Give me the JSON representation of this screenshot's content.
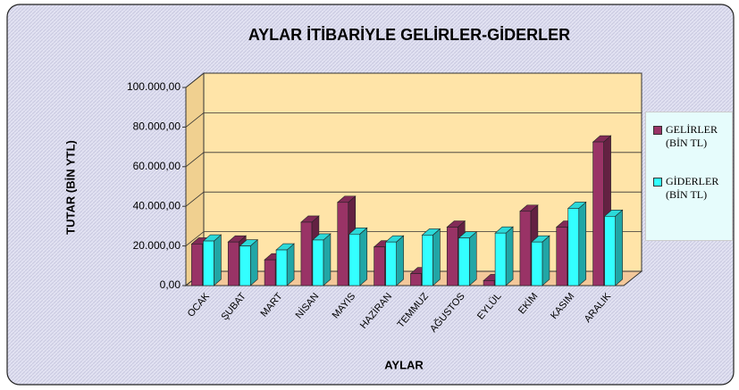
{
  "chart_data": {
    "type": "bar3d",
    "title": "AYLAR İTİBARİYLE GELİRLER-GİDERLER",
    "x_label": "AYLAR",
    "y_label": "TUTAR (BİN YTL)",
    "categories": [
      "OCAK",
      "ŞUBAT",
      "MART",
      "NİSAN",
      "MAYIS",
      "HAZİRAN",
      "TEMMUZ",
      "AĞUSTOS",
      "EYLÜL",
      "EKİM",
      "KASIM",
      "ARALIK"
    ],
    "series": [
      {
        "name": "GELİRLER (BİN TL)",
        "color": "#993366",
        "values": [
          21000,
          22000,
          13000,
          32000,
          42000,
          19500,
          6000,
          29500,
          2500,
          37500,
          29500,
          72500
        ]
      },
      {
        "name": "GİDERLER (BİN TL)",
        "color": "#33FFFF",
        "values": [
          22500,
          20000,
          18000,
          23000,
          26000,
          22000,
          25500,
          24000,
          26500,
          22000,
          39000,
          35000
        ]
      }
    ],
    "ylim": [
      0,
      100000
    ],
    "yticks": [
      {
        "value": 0,
        "label": "0,00"
      },
      {
        "value": 20000,
        "label": "20.000,00"
      },
      {
        "value": 40000,
        "label": "40.000,00"
      },
      {
        "value": 60000,
        "label": "60.000,00"
      },
      {
        "value": 80000,
        "label": "80.000,00"
      },
      {
        "value": 100000,
        "label": "100.000,00"
      }
    ],
    "grid": true,
    "legend": "right"
  }
}
